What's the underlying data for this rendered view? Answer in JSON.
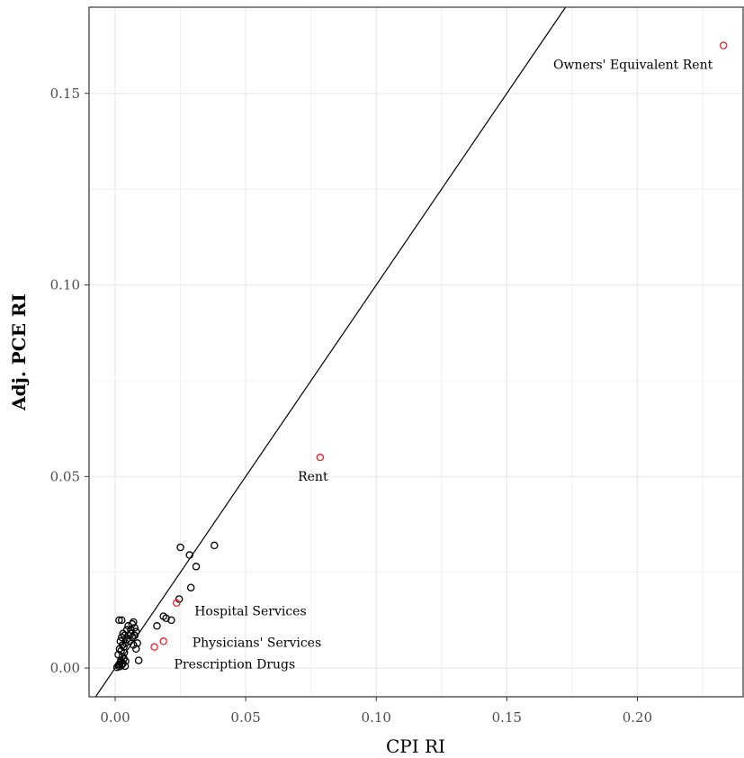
{
  "chart_data": {
    "type": "scatter",
    "xlabel": "CPI RI",
    "ylabel": "Adj. PCE RI",
    "xlim": [
      -0.01,
      0.2405
    ],
    "ylim": [
      -0.0075,
      0.1725
    ],
    "x_ticks": [
      0.0,
      0.05,
      0.1,
      0.15,
      0.2
    ],
    "x_tick_labels": [
      "0.00",
      "0.05",
      "0.10",
      "0.15",
      "0.20"
    ],
    "y_ticks": [
      0.0,
      0.05,
      0.1,
      0.15
    ],
    "y_tick_labels": [
      "0.00",
      "0.05",
      "0.10",
      "0.15"
    ],
    "grid": true,
    "reference_line": {
      "slope": 1,
      "intercept": 0
    },
    "colors": {
      "highlight": "#e8202a",
      "default": "#000000",
      "grid": "#ebebeb",
      "line": "#000000"
    },
    "series": [
      {
        "highlight": false,
        "points": [
          [
            0.0007,
            0.0002
          ],
          [
            0.0012,
            0.0006
          ],
          [
            0.0015,
            0.001
          ],
          [
            0.0018,
            0.0004
          ],
          [
            0.002,
            0.0015
          ],
          [
            0.0022,
            0.002
          ],
          [
            0.0025,
            0.0008
          ],
          [
            0.0027,
            0.003
          ],
          [
            0.003,
            0.0012
          ],
          [
            0.0033,
            0.0025
          ],
          [
            0.0035,
            0.004
          ],
          [
            0.0038,
            0.0005
          ],
          [
            0.004,
            0.0018
          ],
          [
            0.0012,
            0.0035
          ],
          [
            0.0017,
            0.005
          ],
          [
            0.0023,
            0.0045
          ],
          [
            0.0028,
            0.006
          ],
          [
            0.0033,
            0.0055
          ],
          [
            0.004,
            0.0065
          ],
          [
            0.0045,
            0.0075
          ],
          [
            0.005,
            0.0085
          ],
          [
            0.0055,
            0.007
          ],
          [
            0.006,
            0.009
          ],
          [
            0.0065,
            0.008
          ],
          [
            0.007,
            0.006
          ],
          [
            0.0075,
            0.0105
          ],
          [
            0.008,
            0.005
          ],
          [
            0.0085,
            0.0065
          ],
          [
            0.009,
            0.002
          ],
          [
            0.002,
            0.007
          ],
          [
            0.0025,
            0.008
          ],
          [
            0.003,
            0.009
          ],
          [
            0.0035,
            0.0085
          ],
          [
            0.0045,
            0.01
          ],
          [
            0.005,
            0.011
          ],
          [
            0.006,
            0.01
          ],
          [
            0.0065,
            0.0115
          ],
          [
            0.007,
            0.012
          ],
          [
            0.0015,
            0.0125
          ],
          [
            0.0025,
            0.0125
          ],
          [
            0.0075,
            0.0085
          ],
          [
            0.008,
            0.0095
          ],
          [
            0.016,
            0.011
          ],
          [
            0.0185,
            0.0135
          ],
          [
            0.0195,
            0.013
          ],
          [
            0.0215,
            0.0125
          ],
          [
            0.0245,
            0.018
          ],
          [
            0.025,
            0.0315
          ],
          [
            0.0285,
            0.0295
          ],
          [
            0.029,
            0.021
          ],
          [
            0.031,
            0.0265
          ],
          [
            0.038,
            0.032
          ]
        ]
      },
      {
        "highlight": true,
        "points": [
          {
            "x": 0.233,
            "y": 0.1625,
            "label": "Owners' Equivalent Rent"
          },
          {
            "x": 0.0785,
            "y": 0.055,
            "label": "Rent"
          },
          {
            "x": 0.0235,
            "y": 0.017,
            "label": "Hospital Services"
          },
          {
            "x": 0.0185,
            "y": 0.007,
            "label": "Physicians' Services"
          },
          {
            "x": 0.015,
            "y": 0.0055,
            "label": "Prescription Drugs"
          }
        ]
      }
    ]
  }
}
